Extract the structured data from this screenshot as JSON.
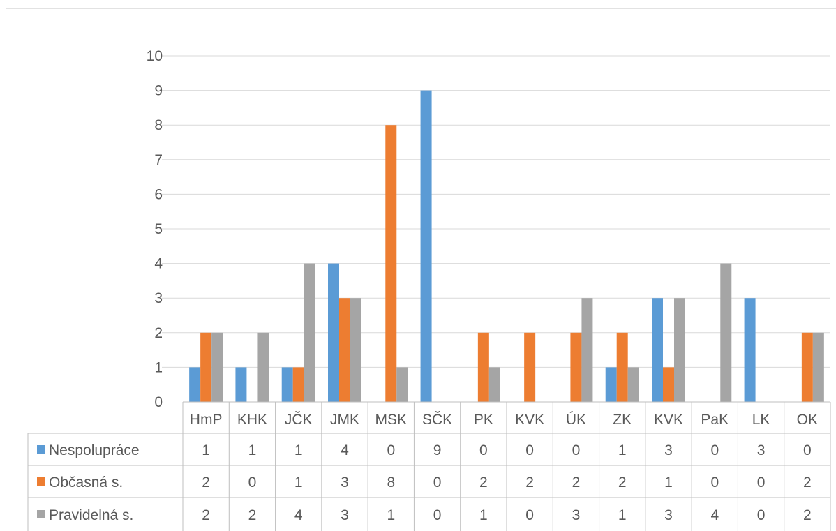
{
  "chart_data": {
    "type": "bar",
    "categories": [
      "HmP",
      "KHK",
      "JČK",
      "JMK",
      "MSK",
      "SČK",
      "PK",
      "KVK",
      "ÚK",
      "ZK",
      "KVK",
      "PaK",
      "LK",
      "OK"
    ],
    "series": [
      {
        "name": "Nespolupráce",
        "color": "#5b9bd5",
        "values": [
          1,
          1,
          1,
          4,
          0,
          9,
          0,
          0,
          0,
          1,
          3,
          0,
          3,
          0
        ]
      },
      {
        "name": "Občasná s.",
        "color": "#ed7d31",
        "values": [
          2,
          0,
          1,
          3,
          8,
          0,
          2,
          2,
          2,
          2,
          1,
          0,
          0,
          2
        ]
      },
      {
        "name": "Pravidelná s.",
        "color": "#a5a5a5",
        "values": [
          2,
          2,
          4,
          3,
          1,
          0,
          1,
          0,
          3,
          1,
          3,
          4,
          0,
          2
        ]
      }
    ],
    "ylim": [
      0,
      10
    ],
    "yticks": [
      "0",
      "1",
      "2",
      "3",
      "4",
      "5",
      "6",
      "7",
      "8",
      "9",
      "10"
    ],
    "grid": true,
    "legend": "data table"
  }
}
